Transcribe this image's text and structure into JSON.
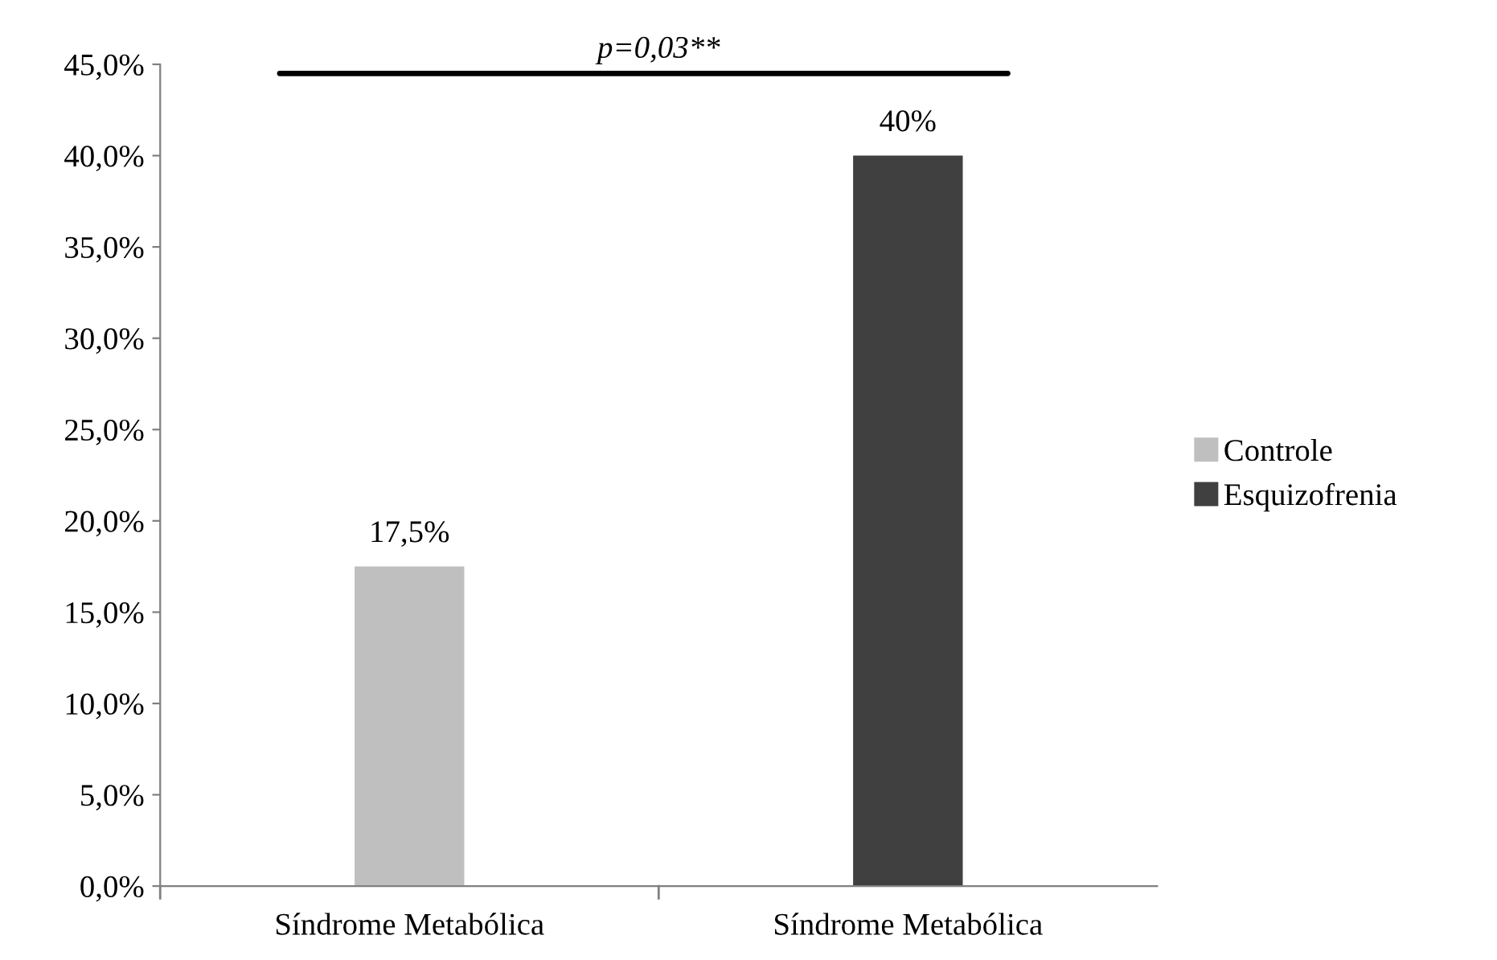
{
  "chart_data": {
    "type": "bar",
    "categories": [
      "Síndrome Metabólica",
      "Síndrome Metabólica"
    ],
    "series": [
      {
        "name": "Controle",
        "color": "#bfbfbf",
        "values": [
          17.5,
          null
        ],
        "value_labels": [
          "17,5%",
          null
        ]
      },
      {
        "name": "Esquizofrenia",
        "color": "#404040",
        "values": [
          null,
          40
        ],
        "value_labels": [
          null,
          "40%"
        ]
      }
    ],
    "ylim": [
      0,
      45
    ],
    "yticks": [
      {
        "value": 0,
        "label": "0,0%"
      },
      {
        "value": 5,
        "label": "5,0%"
      },
      {
        "value": 10,
        "label": "10,0%"
      },
      {
        "value": 15,
        "label": "15,0%"
      },
      {
        "value": 20,
        "label": "20,0%"
      },
      {
        "value": 25,
        "label": "25,0%"
      },
      {
        "value": 30,
        "label": "30,0%"
      },
      {
        "value": 35,
        "label": "35,0%"
      },
      {
        "value": 40,
        "label": "40,0%"
      },
      {
        "value": 45,
        "label": "45,0%"
      }
    ],
    "ref_lines": [
      {
        "axis": "y",
        "value": 44.5,
        "color": "#000000"
      }
    ],
    "annotations": [
      "p=0,03**"
    ],
    "grid": false,
    "legend": "right"
  }
}
